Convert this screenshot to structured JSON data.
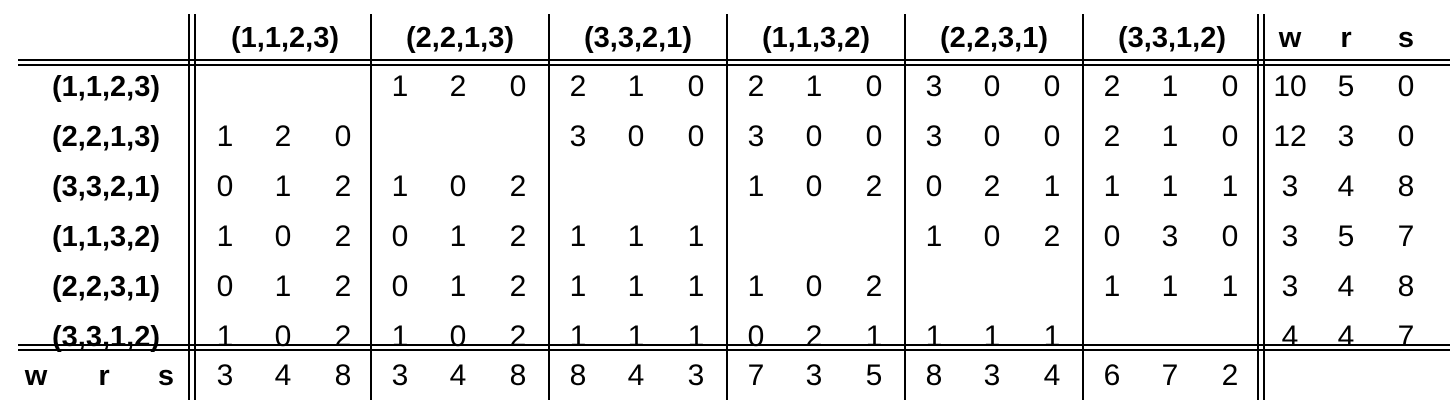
{
  "table": {
    "column_groups": [
      "(1,1,2,3)",
      "(2,2,1,3)",
      "(3,3,2,1)",
      "(1,1,3,2)",
      "(2,2,3,1)",
      "(3,3,1,2)"
    ],
    "summary_header": [
      "w",
      "r",
      "s"
    ],
    "rows": [
      {
        "label": "(1,1,2,3)",
        "groups": [
          [],
          [
            1,
            2,
            0
          ],
          [
            2,
            1,
            0
          ],
          [
            2,
            1,
            0
          ],
          [
            3,
            0,
            0
          ],
          [
            2,
            1,
            0
          ]
        ],
        "wrs": [
          10,
          5,
          0
        ]
      },
      {
        "label": "(2,2,1,3)",
        "groups": [
          [
            1,
            2,
            0
          ],
          [],
          [
            3,
            0,
            0
          ],
          [
            3,
            0,
            0
          ],
          [
            3,
            0,
            0
          ],
          [
            2,
            1,
            0
          ]
        ],
        "wrs": [
          12,
          3,
          0
        ]
      },
      {
        "label": "(3,3,2,1)",
        "groups": [
          [
            0,
            1,
            2
          ],
          [
            1,
            0,
            2
          ],
          [],
          [
            1,
            0,
            2
          ],
          [
            0,
            2,
            1
          ],
          [
            1,
            1,
            1
          ]
        ],
        "wrs": [
          3,
          4,
          8
        ]
      },
      {
        "label": "(1,1,3,2)",
        "groups": [
          [
            1,
            0,
            2
          ],
          [
            0,
            1,
            2
          ],
          [
            1,
            1,
            1
          ],
          [],
          [
            1,
            0,
            2
          ],
          [
            0,
            3,
            0
          ]
        ],
        "wrs": [
          3,
          5,
          7
        ]
      },
      {
        "label": "(2,2,3,1)",
        "groups": [
          [
            0,
            1,
            2
          ],
          [
            0,
            1,
            2
          ],
          [
            1,
            1,
            1
          ],
          [
            1,
            0,
            2
          ],
          [],
          [
            1,
            1,
            1
          ]
        ],
        "wrs": [
          3,
          4,
          8
        ]
      },
      {
        "label": "(3,3,1,2)",
        "groups": [
          [
            1,
            0,
            2
          ],
          [
            1,
            0,
            2
          ],
          [
            1,
            1,
            1
          ],
          [
            0,
            2,
            1
          ],
          [
            1,
            1,
            1
          ],
          []
        ],
        "wrs": [
          4,
          4,
          7
        ]
      }
    ],
    "footer": {
      "label": [
        "w",
        "r",
        "s"
      ],
      "groups": [
        [
          3,
          4,
          8
        ],
        [
          3,
          4,
          8
        ],
        [
          8,
          4,
          3
        ],
        [
          7,
          3,
          5
        ],
        [
          8,
          3,
          4
        ],
        [
          6,
          7,
          2
        ]
      ]
    }
  }
}
